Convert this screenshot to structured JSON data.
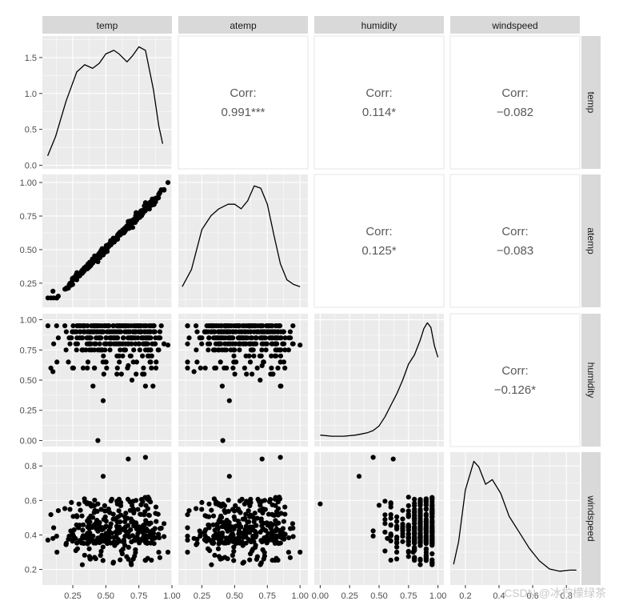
{
  "chart_data": {
    "type": "scatter",
    "variables": [
      "temp",
      "atemp",
      "humidity",
      "windspeed"
    ],
    "corr_label": "Corr:",
    "correlations": [
      {
        "row": 0,
        "col": 1,
        "value": "0.991***"
      },
      {
        "row": 0,
        "col": 2,
        "value": "0.114*"
      },
      {
        "row": 0,
        "col": 3,
        "value": "−0.082"
      },
      {
        "row": 1,
        "col": 2,
        "value": "0.125*"
      },
      {
        "row": 1,
        "col": 3,
        "value": "−0.083"
      },
      {
        "row": 2,
        "col": 3,
        "value": "−0.126*"
      }
    ],
    "axes": {
      "temp": {
        "lim": [
          0.02,
          1.0
        ],
        "ticks": [
          0.25,
          0.5,
          0.75,
          1.0
        ],
        "labels": [
          "0.25",
          "0.50",
          "0.75",
          "1.00"
        ]
      },
      "atemp": {
        "lim": [
          0.07,
          1.06
        ],
        "ticks": [
          0.25,
          0.5,
          0.75,
          1.0
        ],
        "labels": [
          "0.25",
          "0.50",
          "0.75",
          "1.00"
        ]
      },
      "humidity": {
        "lim": [
          -0.05,
          1.05
        ],
        "ticks": [
          0,
          0.25,
          0.5,
          0.75,
          1.0
        ],
        "labels": [
          "0.00",
          "0.25",
          "0.50",
          "0.75",
          "1.00"
        ]
      },
      "windspeed": {
        "lim": [
          0.11,
          0.88
        ],
        "ticks": [
          0.2,
          0.4,
          0.6,
          0.8
        ],
        "labels": [
          "0.2",
          "0.4",
          "0.6",
          "0.8"
        ]
      }
    },
    "bottom_axis_labels": {
      "temp": [
        "0.25",
        "0.50",
        "0.75",
        "1.00"
      ],
      "atemp": [
        "0.25",
        "0.50",
        "0.75",
        "1.00"
      ],
      "humidity": [
        "0.00",
        "0.25",
        "0.50",
        "0.75",
        "1.00"
      ],
      "windspeed": [
        "0.2",
        "0.4",
        "0.6",
        "0.8"
      ]
    },
    "density": {
      "temp": {
        "ylim": [
          -0.05,
          1.8
        ],
        "yticks": [
          0.0,
          0.5,
          1.0,
          1.5
        ],
        "ylabels": [
          "0.0",
          "0.5",
          "1.0",
          "1.5"
        ],
        "x": [
          0.06,
          0.12,
          0.2,
          0.28,
          0.34,
          0.4,
          0.45,
          0.5,
          0.56,
          0.6,
          0.66,
          0.7,
          0.75,
          0.8,
          0.86,
          0.9,
          0.93
        ],
        "y": [
          0.13,
          0.4,
          0.9,
          1.3,
          1.4,
          1.35,
          1.42,
          1.55,
          1.6,
          1.55,
          1.44,
          1.52,
          1.65,
          1.6,
          1.05,
          0.55,
          0.3
        ]
      },
      "atemp": {
        "x": [
          0.1,
          0.17,
          0.25,
          0.32,
          0.38,
          0.45,
          0.5,
          0.55,
          0.6,
          0.65,
          0.7,
          0.75,
          0.8,
          0.85,
          0.9,
          0.95,
          1.0
        ],
        "y": [
          0.1,
          0.25,
          0.6,
          0.72,
          0.78,
          0.82,
          0.82,
          0.78,
          0.85,
          0.98,
          0.96,
          0.82,
          0.55,
          0.3,
          0.16,
          0.12,
          0.1
        ]
      },
      "humidity": {
        "x": [
          0.0,
          0.1,
          0.2,
          0.3,
          0.35,
          0.4,
          0.45,
          0.5,
          0.55,
          0.6,
          0.65,
          0.7,
          0.75,
          0.8,
          0.85,
          0.88,
          0.91,
          0.94,
          0.97,
          1.0
        ],
        "y": [
          0.02,
          0.01,
          0.01,
          0.02,
          0.03,
          0.04,
          0.06,
          0.1,
          0.18,
          0.28,
          0.38,
          0.5,
          0.64,
          0.72,
          0.85,
          0.95,
          1.0,
          0.96,
          0.8,
          0.7
        ]
      },
      "windspeed": {
        "x": [
          0.13,
          0.16,
          0.2,
          0.25,
          0.28,
          0.32,
          0.36,
          0.41,
          0.46,
          0.52,
          0.58,
          0.64,
          0.7,
          0.76,
          0.82,
          0.86
        ],
        "y": [
          0.1,
          0.3,
          0.75,
          1.0,
          0.95,
          0.8,
          0.84,
          0.72,
          0.52,
          0.38,
          0.24,
          0.13,
          0.06,
          0.04,
          0.05,
          0.05
        ]
      }
    }
  },
  "watermark": "CSDN @冰柠檬绿茶"
}
